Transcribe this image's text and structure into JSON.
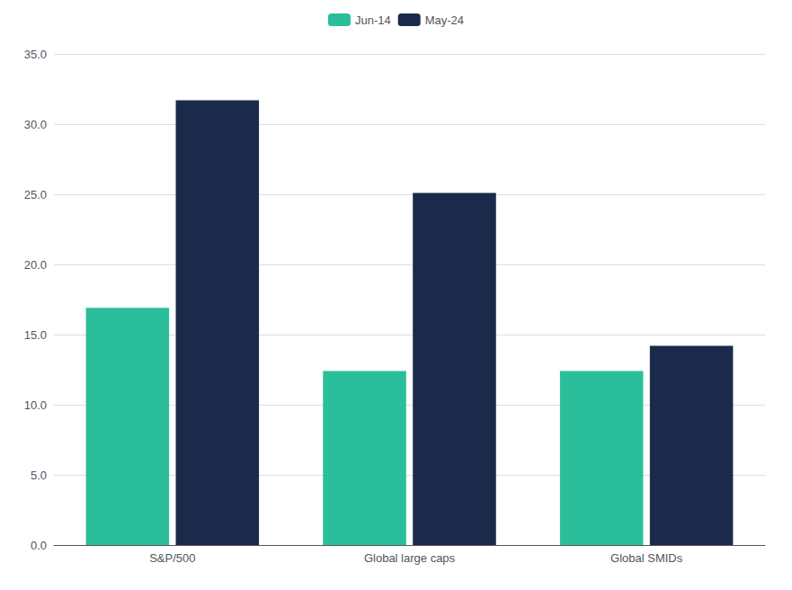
{
  "chart_data": {
    "type": "bar",
    "categories": [
      "S&P/500",
      "Global large caps",
      "Global SMIDs"
    ],
    "series": [
      {
        "name": "Jun-14",
        "color": "#2abf9a",
        "values": [
          16.9,
          12.4,
          12.4
        ]
      },
      {
        "name": "May-24",
        "color": "#1b2a4a",
        "values": [
          31.7,
          25.1,
          14.2
        ]
      }
    ],
    "ylim": [
      0,
      35
    ],
    "yticks": [
      {
        "value": 0,
        "label": "0.0"
      },
      {
        "value": 5,
        "label": "5.0"
      },
      {
        "value": 10,
        "label": "10.0"
      },
      {
        "value": 15,
        "label": "15.0"
      },
      {
        "value": 20,
        "label": "20.0"
      },
      {
        "value": 25,
        "label": "25.0"
      },
      {
        "value": 30,
        "label": "30.0"
      },
      {
        "value": 35,
        "label": "35.0"
      }
    ],
    "grid": true,
    "legend": "top"
  }
}
